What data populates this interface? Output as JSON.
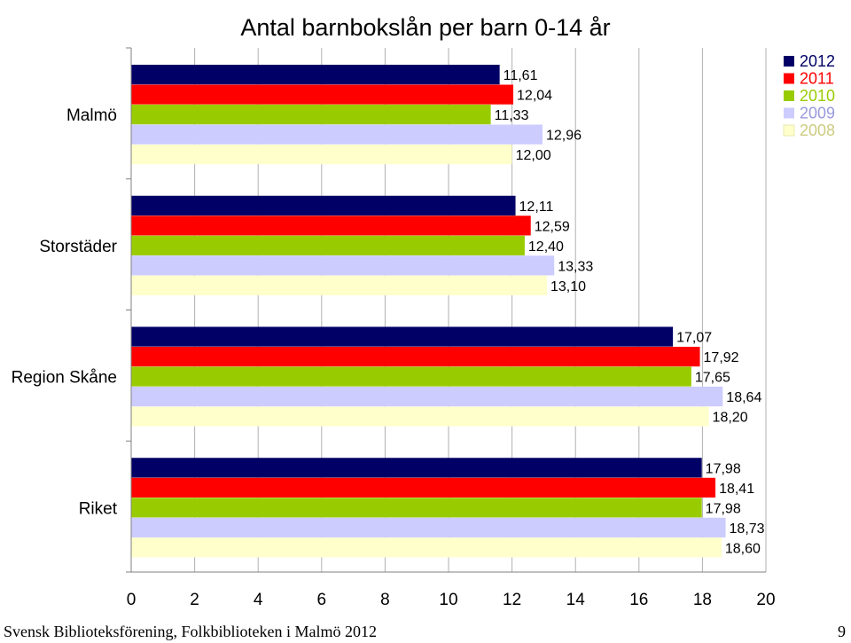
{
  "chart_data": {
    "type": "bar",
    "orientation": "horizontal",
    "title": "Antal barnbokslån per barn 0-14 år",
    "categories": [
      "Malmö",
      "Storstäder",
      "Region Skåne",
      "Riket"
    ],
    "series": [
      {
        "name": "2012",
        "color": "#000066",
        "values": [
          11.61,
          12.11,
          17.07,
          17.98
        ],
        "labels": [
          "11,61",
          "12,11",
          "17,07",
          "17,98"
        ]
      },
      {
        "name": "2011",
        "color": "#ff0000",
        "values": [
          12.04,
          12.59,
          17.92,
          18.41
        ],
        "labels": [
          "12,04",
          "12,59",
          "17,92",
          "18,41"
        ]
      },
      {
        "name": "2010",
        "color": "#99cc00",
        "values": [
          11.33,
          12.4,
          17.65,
          17.98
        ],
        "labels": [
          "11,33",
          "12,40",
          "17,65",
          "17,98"
        ]
      },
      {
        "name": "2009",
        "color": "#ccccff",
        "values": [
          12.96,
          13.33,
          18.64,
          18.73
        ],
        "labels": [
          "12,96",
          "13,33",
          "18,64",
          "18,73"
        ]
      },
      {
        "name": "2008",
        "color": "#ffffcc",
        "values": [
          12.0,
          13.1,
          18.2,
          18.6
        ],
        "labels": [
          "12,00",
          "13,10",
          "18,20",
          "18,60"
        ]
      }
    ],
    "xlim": [
      0,
      20
    ],
    "xticks": [
      "0",
      "2",
      "4",
      "6",
      "8",
      "10",
      "12",
      "14",
      "16",
      "18",
      "20"
    ],
    "grid": true,
    "legend_position": "top-right"
  },
  "footer": {
    "source": "Svensk Biblioteksförening, Folkbiblioteken i Malmö 2012",
    "page_number": "9"
  }
}
